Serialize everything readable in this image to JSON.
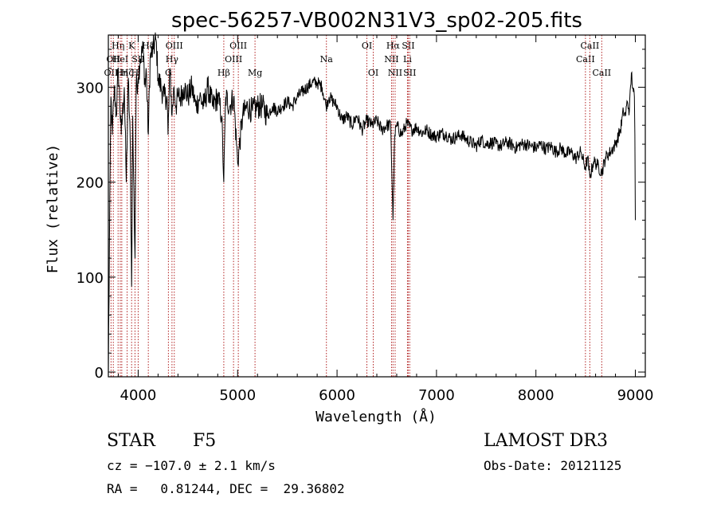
{
  "chart_data": {
    "type": "line",
    "title": "spec-56257-VB002N31V3_sp02-205.fits",
    "xlabel": "Wavelength (Å)",
    "ylabel": "Flux (relative)",
    "xlim": [
      3700,
      9100
    ],
    "ylim": [
      -5,
      355
    ],
    "xticks": [
      4000,
      5000,
      6000,
      7000,
      8000,
      9000
    ],
    "yticks": [
      0,
      100,
      200,
      300
    ],
    "x_tick_labels": [
      "4000",
      "5000",
      "6000",
      "7000",
      "8000",
      "9000"
    ],
    "y_tick_labels": [
      "0",
      "100",
      "200",
      "300"
    ],
    "grid": false,
    "series": [
      {
        "name": "flux",
        "x": [
          3700,
          3718,
          3726,
          3740,
          3760,
          3780,
          3800,
          3830,
          3860,
          3880,
          3900,
          3920,
          3934,
          3945,
          3950,
          3968,
          3980,
          4000,
          4020,
          4050,
          4070,
          4080,
          4102,
          4120,
          4150,
          4180,
          4200,
          4230,
          4260,
          4290,
          4300,
          4320,
          4340,
          4360,
          4380,
          4400,
          4430,
          4460,
          4500,
          4540,
          4580,
          4620,
          4660,
          4700,
          4750,
          4800,
          4840,
          4861,
          4880,
          4920,
          4960,
          5000,
          5050,
          5100,
          5150,
          5200,
          5250,
          5300,
          5350,
          5400,
          5450,
          5500,
          5550,
          5600,
          5650,
          5700,
          5750,
          5800,
          5850,
          5890,
          5920,
          5960,
          6000,
          6050,
          6100,
          6150,
          6200,
          6250,
          6300,
          6350,
          6400,
          6450,
          6500,
          6540,
          6563,
          6580,
          6600,
          6650,
          6700,
          6750,
          6800,
          6850,
          6900,
          6950,
          7000,
          7050,
          7100,
          7150,
          7200,
          7250,
          7300,
          7350,
          7400,
          7450,
          7500,
          7550,
          7600,
          7650,
          7700,
          7750,
          7800,
          7850,
          7900,
          7950,
          8000,
          8050,
          8100,
          8150,
          8200,
          8250,
          8300,
          8350,
          8400,
          8450,
          8498,
          8520,
          8542,
          8580,
          8620,
          8662,
          8700,
          8750,
          8800,
          8850,
          8880,
          8900,
          8920,
          8940,
          8960,
          8980,
          8990,
          8995,
          9000
        ],
        "values": [
          0,
          210,
          290,
          250,
          300,
          270,
          320,
          250,
          300,
          200,
          310,
          240,
          90,
          270,
          230,
          120,
          300,
          310,
          330,
          340,
          300,
          320,
          250,
          330,
          340,
          350,
          310,
          300,
          290,
          290,
          250,
          320,
          270,
          300,
          280,
          290,
          290,
          300,
          290,
          300,
          280,
          290,
          280,
          300,
          280,
          290,
          270,
          200,
          290,
          280,
          290,
          220,
          270,
          280,
          275,
          280,
          280,
          270,
          280,
          275,
          280,
          285,
          280,
          290,
          295,
          300,
          305,
          305,
          300,
          280,
          290,
          285,
          280,
          265,
          270,
          260,
          270,
          255,
          265,
          260,
          265,
          255,
          260,
          260,
          160,
          250,
          260,
          250,
          262,
          255,
          258,
          252,
          255,
          250,
          248,
          252,
          250,
          245,
          248,
          250,
          245,
          242,
          238,
          245,
          240,
          242,
          240,
          238,
          242,
          240,
          236,
          240,
          240,
          238,
          236,
          240,
          235,
          238,
          232,
          236,
          230,
          232,
          225,
          232,
          215,
          226,
          205,
          222,
          218,
          210,
          226,
          232,
          240,
          255,
          275,
          270,
          285,
          275,
          315,
          295,
          290,
          250,
          160
        ]
      }
    ],
    "line_markers": [
      {
        "wl": 3727,
        "label": "OII",
        "row": 2
      },
      {
        "wl": 3750,
        "label": "OII",
        "row": 1
      },
      {
        "wl": 3798,
        "label": "Hη",
        "row": 0
      },
      {
        "wl": 3820,
        "label": "HeI",
        "row": 1
      },
      {
        "wl": 3835,
        "label": "Hη",
        "row": 2
      },
      {
        "wl": 3889,
        "label": "Hζ",
        "row": 2
      },
      {
        "wl": 3934,
        "label": "K",
        "row": 0
      },
      {
        "wl": 3968,
        "label": "H",
        "row": 2
      },
      {
        "wl": 4000,
        "label": "SII",
        "row": 1
      },
      {
        "wl": 4102,
        "label": "Hδ",
        "row": 0
      },
      {
        "wl": 4304,
        "label": "G",
        "row": 2
      },
      {
        "wl": 4340,
        "label": "Hγ",
        "row": 1
      },
      {
        "wl": 4363,
        "label": "OIII",
        "row": 0
      },
      {
        "wl": 4861,
        "label": "Hβ",
        "row": 2
      },
      {
        "wl": 4959,
        "label": "OIII",
        "row": 1
      },
      {
        "wl": 5007,
        "label": "OIII",
        "row": 0
      },
      {
        "wl": 5175,
        "label": "Mg",
        "row": 2
      },
      {
        "wl": 5893,
        "label": "Na",
        "row": 1
      },
      {
        "wl": 6300,
        "label": "OI",
        "row": 0
      },
      {
        "wl": 6364,
        "label": "OI",
        "row": 2
      },
      {
        "wl": 6548,
        "label": "NII",
        "row": 1
      },
      {
        "wl": 6563,
        "label": "Hα",
        "row": 0
      },
      {
        "wl": 6584,
        "label": "NII",
        "row": 2
      },
      {
        "wl": 6708,
        "label": "Li",
        "row": 1
      },
      {
        "wl": 6716,
        "label": "SII",
        "row": 0
      },
      {
        "wl": 6731,
        "label": "SII",
        "row": 2
      },
      {
        "wl": 8498,
        "label": "CaII",
        "row": 1
      },
      {
        "wl": 8542,
        "label": "CaII",
        "row": 0
      },
      {
        "wl": 8662,
        "label": "CaII",
        "row": 2
      }
    ]
  },
  "info": {
    "object_class": "STAR",
    "subclass": "F5",
    "survey": "LAMOST DR3",
    "redshift_line": "cz = −107.0 ± 2.1 km/s",
    "obs_date": "Obs-Date: 20121125",
    "coords": "RA =   0.81244, DEC =  29.36802"
  },
  "colors": {
    "axes": "#000000",
    "spectrum": "#000000",
    "marker_line": "#b22222",
    "background": "#ffffff"
  }
}
